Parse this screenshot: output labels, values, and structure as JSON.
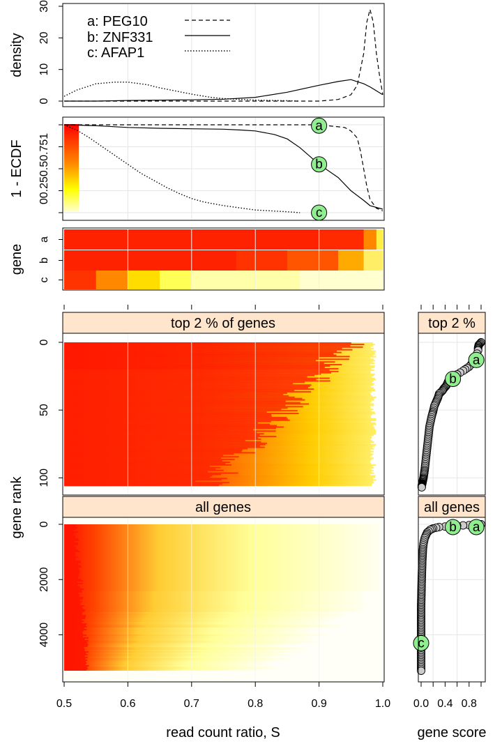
{
  "chart_data": [
    {
      "panel": "density",
      "type": "line",
      "ylabel": "density",
      "xlim": [
        0.5,
        1.0
      ],
      "ylim": [
        0,
        30
      ],
      "yticks": [
        0,
        10,
        20,
        30
      ],
      "legend_position": "top-left",
      "series": [
        {
          "name": "a: PEG10",
          "line_style": "dashed",
          "x": [
            0.5,
            0.55,
            0.6,
            0.7,
            0.8,
            0.9,
            0.93,
            0.95,
            0.96,
            0.97,
            0.975,
            0.98,
            0.985,
            0.99,
            0.995,
            1.0
          ],
          "y": [
            0,
            0,
            0,
            0,
            0,
            0,
            0.5,
            2,
            5,
            15,
            25,
            29,
            25,
            15,
            8,
            2
          ]
        },
        {
          "name": "b: ZNF331",
          "line_style": "solid",
          "x": [
            0.5,
            0.55,
            0.6,
            0.7,
            0.75,
            0.8,
            0.85,
            0.9,
            0.93,
            0.95,
            0.97,
            0.98,
            1.0
          ],
          "y": [
            0,
            0,
            0.2,
            0.4,
            0.6,
            1.2,
            2.8,
            5.0,
            6.2,
            6.8,
            5.5,
            4.5,
            2
          ]
        },
        {
          "name": "c: AFAP1",
          "line_style": "dotted",
          "x": [
            0.5,
            0.52,
            0.55,
            0.58,
            0.6,
            0.63,
            0.65,
            0.68,
            0.7,
            0.73,
            0.75,
            0.8,
            0.85,
            0.87
          ],
          "y": [
            1.5,
            3.5,
            5.5,
            6.0,
            6.0,
            5.2,
            4.2,
            3.0,
            2.2,
            1.2,
            0.8,
            0.3,
            0.1,
            0
          ]
        }
      ]
    },
    {
      "panel": "ecdf",
      "type": "line",
      "ylabel": "1 - ECDF",
      "xlim": [
        0.5,
        1.0
      ],
      "ylim": [
        0,
        1
      ],
      "yticks": [
        "0",
        "0.25",
        "0.5",
        "0.75",
        "1"
      ],
      "series": [
        {
          "name": "a",
          "line_style": "dashed",
          "x": [
            0.5,
            0.85,
            0.9,
            0.94,
            0.95,
            0.96,
            0.965,
            0.97,
            0.975,
            0.98,
            0.99,
            1.0
          ],
          "y": [
            1,
            1,
            1,
            0.97,
            0.93,
            0.85,
            0.7,
            0.5,
            0.3,
            0.15,
            0.05,
            0.02
          ]
        },
        {
          "name": "b",
          "line_style": "solid",
          "x": [
            0.5,
            0.55,
            0.6,
            0.65,
            0.7,
            0.75,
            0.78,
            0.8,
            0.83,
            0.85,
            0.87,
            0.9,
            0.93,
            0.95,
            0.97,
            0.98,
            1.0
          ],
          "y": [
            1,
            0.99,
            0.97,
            0.96,
            0.955,
            0.95,
            0.94,
            0.93,
            0.89,
            0.84,
            0.74,
            0.55,
            0.4,
            0.25,
            0.14,
            0.08,
            0.04
          ]
        },
        {
          "name": "c",
          "line_style": "dotted",
          "x": [
            0.5,
            0.52,
            0.54,
            0.56,
            0.58,
            0.6,
            0.62,
            0.64,
            0.66,
            0.68,
            0.7,
            0.72,
            0.75,
            0.8,
            0.85,
            0.87
          ],
          "y": [
            1,
            0.94,
            0.85,
            0.75,
            0.65,
            0.55,
            0.45,
            0.37,
            0.29,
            0.22,
            0.16,
            0.12,
            0.08,
            0.03,
            0.01,
            0
          ]
        }
      ],
      "markers": [
        {
          "label": "a",
          "x": 0.9,
          "y": 0.99
        },
        {
          "label": "b",
          "x": 0.9,
          "y": 0.55
        },
        {
          "label": "c",
          "x": 0.9,
          "y": 0.0
        }
      ]
    },
    {
      "panel": "gene-heatmap",
      "type": "heatmap",
      "ylabel": "gene",
      "rows": [
        "a",
        "b",
        "c"
      ],
      "xlim": [
        0.5,
        1.0
      ],
      "row_color_breaks": [
        [
          {
            "x": 0.5,
            "c": "#ff2200"
          },
          {
            "x": 0.9,
            "c": "#ff2a00"
          },
          {
            "x": 0.97,
            "c": "#ff8800"
          },
          {
            "x": 0.99,
            "c": "#ffee44"
          },
          {
            "x": 1.0,
            "c": "#ffffee"
          }
        ],
        [
          {
            "x": 0.5,
            "c": "#ff2200"
          },
          {
            "x": 0.77,
            "c": "#ff3300"
          },
          {
            "x": 0.85,
            "c": "#ff5500"
          },
          {
            "x": 0.93,
            "c": "#ffaa00"
          },
          {
            "x": 0.97,
            "c": "#ffee66"
          },
          {
            "x": 1.0,
            "c": "#ffffdd"
          }
        ],
        [
          {
            "x": 0.5,
            "c": "#ff3300"
          },
          {
            "x": 0.55,
            "c": "#ff8800"
          },
          {
            "x": 0.6,
            "c": "#ffdd00"
          },
          {
            "x": 0.65,
            "c": "#ffff55"
          },
          {
            "x": 0.7,
            "c": "#ffffaa"
          },
          {
            "x": 0.87,
            "c": "#ffffd0"
          },
          {
            "x": 1.0,
            "c": "#fffff0"
          }
        ]
      ]
    },
    {
      "panel": "top-genes-heatmap",
      "type": "heatmap",
      "strip_label": "top 2 % of genes",
      "ylabel": "gene rank",
      "ylim": [
        0,
        108
      ],
      "yticks": [
        0,
        50,
        100
      ],
      "xlim": [
        0.5,
        1.0
      ]
    },
    {
      "panel": "all-genes-heatmap",
      "type": "heatmap",
      "strip_label": "all genes",
      "ylim": [
        0,
        5300
      ],
      "yticks": [
        0,
        2000,
        4000
      ],
      "xlim": [
        0.5,
        1.0
      ],
      "xticks": [
        "0.5",
        "0.6",
        "0.7",
        "0.8",
        "0.9",
        "1.0"
      ],
      "xlabel": "read count ratio, S"
    },
    {
      "panel": "top-score",
      "type": "scatter",
      "strip_label": "top 2 %",
      "xlim": [
        0,
        1
      ],
      "ylim": [
        0,
        108
      ],
      "curve_x": [
        1.0,
        0.96,
        0.95,
        0.95,
        0.9,
        0.8,
        0.7,
        0.55,
        0.5,
        0.45,
        0.42,
        0.38,
        0.35,
        0.3,
        0.28,
        0.25,
        0.22,
        0.2,
        0.18,
        0.16,
        0.14,
        0.13,
        0.12,
        0.11,
        0.1,
        0.09,
        0.08,
        0.07,
        0.06,
        0.05,
        0.04,
        0.03,
        0.02,
        0.015,
        0.01,
        0.01
      ],
      "curve_y": [
        0,
        2,
        4,
        6,
        13,
        18,
        21,
        25,
        27,
        29,
        32,
        34,
        36,
        38,
        41,
        44,
        47,
        51,
        54,
        58,
        62,
        66,
        70,
        74,
        78,
        82,
        86,
        90,
        94,
        97,
        100,
        102,
        104,
        105,
        106,
        107
      ],
      "markers": [
        {
          "label": "a",
          "x": 0.92,
          "y": 13
        },
        {
          "label": "b",
          "x": 0.53,
          "y": 27
        }
      ]
    },
    {
      "panel": "all-score",
      "type": "scatter",
      "strip_label": "all genes",
      "xlim": [
        0,
        1
      ],
      "ylim": [
        0,
        5300
      ],
      "xticks": [
        "0.0",
        "0.4",
        "0.8"
      ],
      "xlabel": "gene score",
      "curve_x": [
        1.0,
        0.9,
        0.7,
        0.5,
        0.3,
        0.2,
        0.15,
        0.1,
        0.08,
        0.06,
        0.04,
        0.03,
        0.02,
        0.01,
        0.0,
        0.0,
        0.0
      ],
      "curve_y": [
        0,
        20,
        40,
        60,
        100,
        150,
        200,
        300,
        400,
        500,
        700,
        900,
        1300,
        2000,
        3000,
        4500,
        5300
      ],
      "markers": [
        {
          "label": "b",
          "x": 0.53,
          "y": 100
        },
        {
          "label": "a",
          "x": 0.92,
          "y": 100
        },
        {
          "label": "c",
          "x": 0.0,
          "y": 4300
        }
      ]
    }
  ],
  "colors": {
    "strip": "#ffe5cc",
    "marker_fill": "#90ee90",
    "point_fill": "#cccccc",
    "heat_high": "#ff0000",
    "heat_mid": "#ffff00",
    "heat_low": "#ffffee",
    "grid": "#e6e6e6"
  }
}
